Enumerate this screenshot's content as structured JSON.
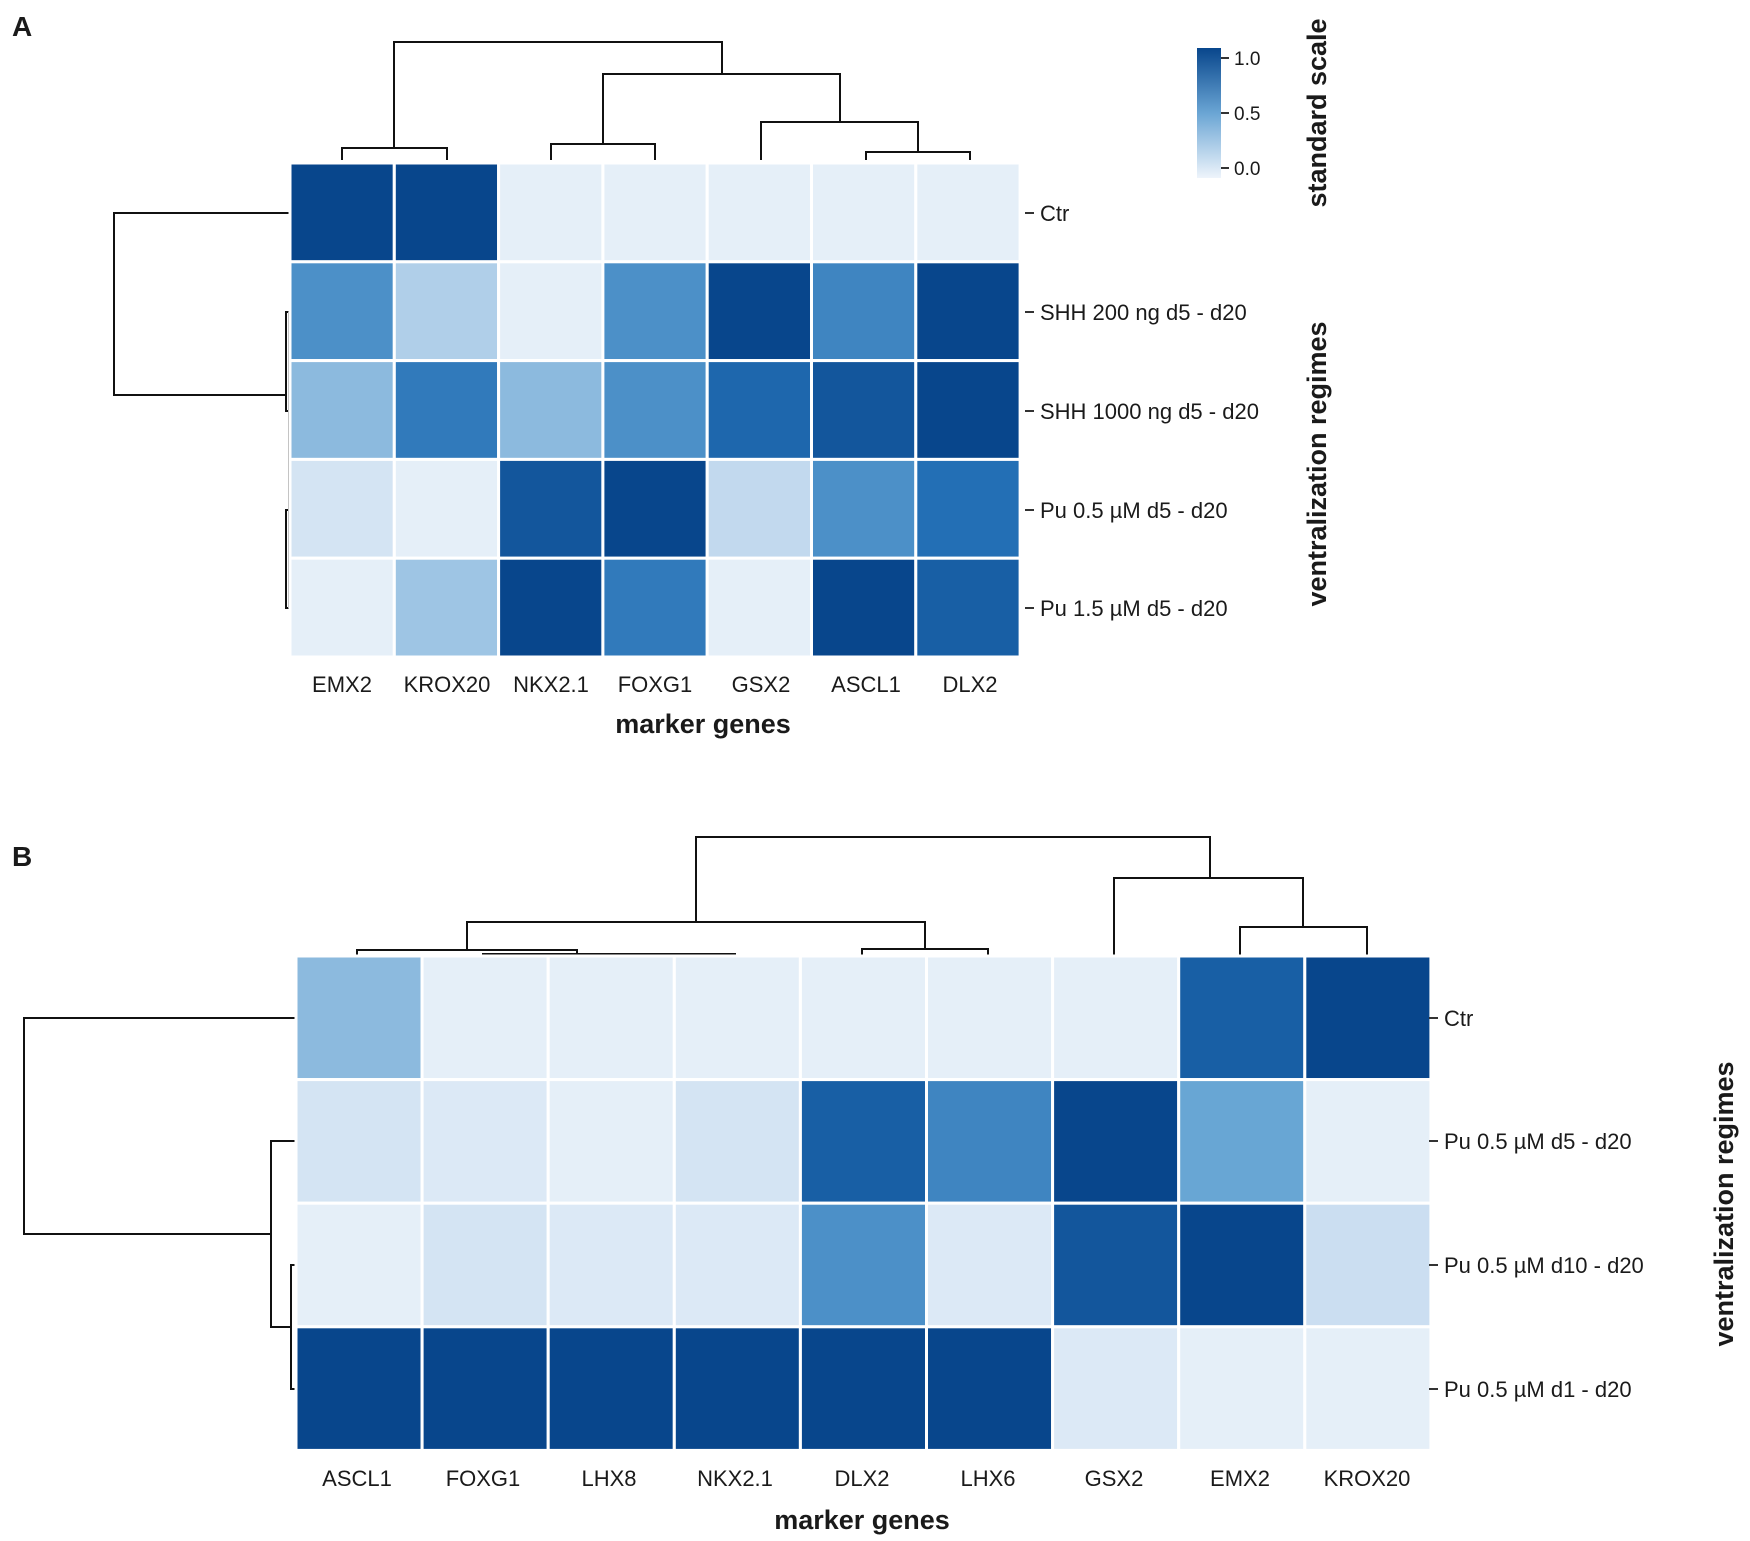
{
  "figure": {
    "colors": {
      "low": "#eef4fb",
      "high": "#08468c",
      "text": "#1a1a1a"
    }
  },
  "chart_data": [
    {
      "panel": "A",
      "type": "heatmap",
      "xlabel": "marker genes",
      "ylabel": "ventralization regimes",
      "columns": [
        "EMX2",
        "KROX20",
        "NKX2.1",
        "FOXG1",
        "GSX2",
        "ASCL1",
        "DLX2"
      ],
      "rows": [
        "Ctr",
        "SHH 200 ng d5 - d20",
        "SHH 1000 ng d5 - d20",
        "Pu 0.5 µM d5 - d20",
        "Pu 1.5 µM d5 - d20"
      ],
      "values": [
        [
          1.0,
          1.0,
          0.05,
          0.05,
          0.05,
          0.05,
          0.05
        ],
        [
          0.6,
          0.3,
          0.05,
          0.6,
          1.0,
          0.65,
          1.0
        ],
        [
          0.4,
          0.7,
          0.4,
          0.6,
          0.8,
          0.9,
          1.0
        ],
        [
          0.15,
          0.05,
          0.9,
          1.0,
          0.25,
          0.6,
          0.75
        ],
        [
          0.05,
          0.35,
          1.0,
          0.7,
          0.05,
          1.0,
          0.85
        ]
      ],
      "colorbar": {
        "title": "standard scale",
        "range": [
          0,
          1
        ],
        "ticks": [
          "1.0",
          "0.5",
          "0.0"
        ]
      }
    },
    {
      "panel": "B",
      "type": "heatmap",
      "xlabel": "marker genes",
      "ylabel": "ventralization regimes",
      "columns": [
        "ASCL1",
        "FOXG1",
        "LHX8",
        "NKX2.1",
        "DLX2",
        "LHX6",
        "GSX2",
        "EMX2",
        "KROX20"
      ],
      "rows": [
        "Ctr",
        "Pu 0.5 µM d5 - d20",
        "Pu 0.5 µM d10 - d20",
        "Pu 0.5 µM d1 - d20"
      ],
      "values": [
        [
          0.4,
          0.05,
          0.05,
          0.05,
          0.05,
          0.05,
          0.05,
          0.85,
          1.0
        ],
        [
          0.15,
          0.1,
          0.05,
          0.15,
          0.85,
          0.65,
          1.0,
          0.5,
          0.05
        ],
        [
          0.05,
          0.15,
          0.1,
          0.1,
          0.6,
          0.1,
          0.9,
          1.0,
          0.2
        ],
        [
          1.0,
          1.0,
          1.0,
          1.0,
          1.0,
          1.0,
          0.1,
          0.05,
          0.05
        ]
      ]
    }
  ]
}
